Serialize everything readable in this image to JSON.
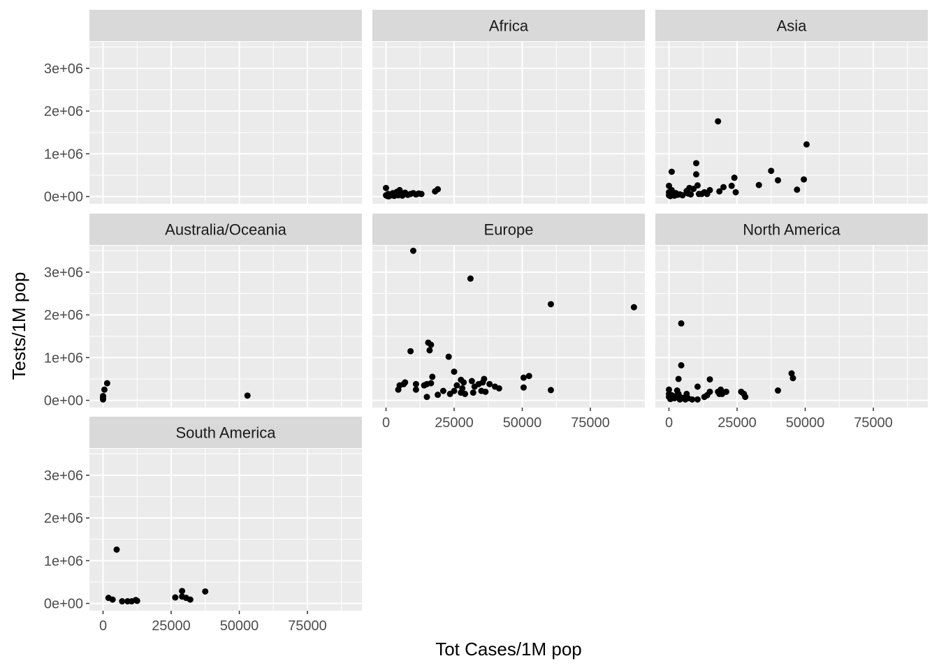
{
  "chart_data": {
    "type": "scatter",
    "facet_layout": "3 columns x 3 rows, shared axes (facet_wrap)",
    "xlabel": "Tot Cases/1M pop",
    "ylabel": "Tests/1M pop",
    "xlim": [
      -5000,
      95000
    ],
    "ylim": [
      -170000,
      3620000
    ],
    "x_ticks": [
      0,
      25000,
      50000,
      75000
    ],
    "x_tick_labels": [
      "0",
      "25000",
      "50000",
      "75000"
    ],
    "y_ticks": [
      0,
      1000000,
      2000000,
      3000000
    ],
    "y_tick_labels": [
      "0e+00",
      "1e+06",
      "2e+06",
      "3e+06"
    ],
    "grid": true,
    "panel_background": "#ebebeb",
    "strip_background": "#d9d9d9",
    "gridline_color": "#ffffff",
    "point_color": "#000000",
    "facets": [
      {
        "label": "",
        "points": []
      },
      {
        "label": "Africa",
        "points": [
          [
            0,
            200000
          ],
          [
            0,
            30000
          ],
          [
            500,
            10000
          ],
          [
            800,
            60000
          ],
          [
            1000,
            5000
          ],
          [
            1500,
            20000
          ],
          [
            2000,
            40000
          ],
          [
            2500,
            80000
          ],
          [
            3000,
            15000
          ],
          [
            3500,
            50000
          ],
          [
            4000,
            110000
          ],
          [
            4500,
            30000
          ],
          [
            5000,
            150000
          ],
          [
            5500,
            60000
          ],
          [
            6000,
            20000
          ],
          [
            7000,
            90000
          ],
          [
            8000,
            40000
          ],
          [
            9000,
            60000
          ],
          [
            10000,
            80000
          ],
          [
            11000,
            50000
          ],
          [
            12000,
            70000
          ],
          [
            13000,
            60000
          ],
          [
            18000,
            120000
          ],
          [
            19000,
            170000
          ]
        ]
      },
      {
        "label": "Asia",
        "points": [
          [
            0,
            250000
          ],
          [
            0,
            100000
          ],
          [
            0,
            30000
          ],
          [
            500,
            10000
          ],
          [
            1000,
            580000
          ],
          [
            1000,
            150000
          ],
          [
            1500,
            60000
          ],
          [
            2000,
            20000
          ],
          [
            2500,
            80000
          ],
          [
            3000,
            40000
          ],
          [
            4000,
            50000
          ],
          [
            5000,
            30000
          ],
          [
            6500,
            130000
          ],
          [
            7000,
            70000
          ],
          [
            7500,
            200000
          ],
          [
            8000,
            50000
          ],
          [
            9000,
            180000
          ],
          [
            10000,
            780000
          ],
          [
            10000,
            520000
          ],
          [
            10500,
            260000
          ],
          [
            11000,
            60000
          ],
          [
            12000,
            60000
          ],
          [
            13000,
            100000
          ],
          [
            14000,
            60000
          ],
          [
            15000,
            150000
          ],
          [
            18000,
            1760000
          ],
          [
            18500,
            120000
          ],
          [
            20000,
            220000
          ],
          [
            23000,
            250000
          ],
          [
            24000,
            440000
          ],
          [
            24500,
            100000
          ],
          [
            33000,
            270000
          ],
          [
            37500,
            600000
          ],
          [
            40000,
            380000
          ],
          [
            47000,
            160000
          ],
          [
            49500,
            400000
          ],
          [
            50500,
            1220000
          ]
        ]
      },
      {
        "label": "Australia/Oceania",
        "points": [
          [
            0,
            100000
          ],
          [
            0,
            60000
          ],
          [
            0,
            20000
          ],
          [
            500,
            250000
          ],
          [
            1500,
            400000
          ],
          [
            53000,
            110000
          ]
        ]
      },
      {
        "label": "Europe",
        "points": [
          [
            4500,
            250000
          ],
          [
            5000,
            350000
          ],
          [
            6500,
            380000
          ],
          [
            7000,
            420000
          ],
          [
            9000,
            1150000
          ],
          [
            10000,
            3500000
          ],
          [
            11000,
            380000
          ],
          [
            11000,
            250000
          ],
          [
            14000,
            350000
          ],
          [
            15000,
            80000
          ],
          [
            15000,
            380000
          ],
          [
            15500,
            1350000
          ],
          [
            16000,
            1170000
          ],
          [
            16500,
            1300000
          ],
          [
            16500,
            400000
          ],
          [
            17000,
            550000
          ],
          [
            19000,
            130000
          ],
          [
            21000,
            220000
          ],
          [
            23000,
            1020000
          ],
          [
            23500,
            150000
          ],
          [
            25000,
            670000
          ],
          [
            25000,
            220000
          ],
          [
            26000,
            350000
          ],
          [
            27500,
            180000
          ],
          [
            27500,
            480000
          ],
          [
            28000,
            280000
          ],
          [
            28500,
            420000
          ],
          [
            29000,
            150000
          ],
          [
            31000,
            2850000
          ],
          [
            31500,
            450000
          ],
          [
            32000,
            180000
          ],
          [
            32500,
            320000
          ],
          [
            34000,
            380000
          ],
          [
            35000,
            220000
          ],
          [
            35500,
            420000
          ],
          [
            36000,
            500000
          ],
          [
            36500,
            200000
          ],
          [
            38000,
            380000
          ],
          [
            40000,
            320000
          ],
          [
            41500,
            280000
          ],
          [
            50500,
            530000
          ],
          [
            50500,
            300000
          ],
          [
            52500,
            570000
          ],
          [
            60500,
            2250000
          ],
          [
            60500,
            240000
          ],
          [
            91000,
            2180000
          ]
        ]
      },
      {
        "label": "North America",
        "points": [
          [
            0,
            250000
          ],
          [
            0,
            150000
          ],
          [
            0,
            80000
          ],
          [
            500,
            30000
          ],
          [
            1000,
            120000
          ],
          [
            2000,
            50000
          ],
          [
            2500,
            100000
          ],
          [
            3000,
            230000
          ],
          [
            3500,
            150000
          ],
          [
            3500,
            500000
          ],
          [
            4000,
            80000
          ],
          [
            4000,
            20000
          ],
          [
            4500,
            820000
          ],
          [
            4500,
            1800000
          ],
          [
            5500,
            60000
          ],
          [
            6000,
            20000
          ],
          [
            6500,
            150000
          ],
          [
            7000,
            50000
          ],
          [
            8500,
            20000
          ],
          [
            10500,
            20000
          ],
          [
            10500,
            320000
          ],
          [
            13000,
            80000
          ],
          [
            14000,
            120000
          ],
          [
            15000,
            490000
          ],
          [
            15000,
            200000
          ],
          [
            18000,
            200000
          ],
          [
            18500,
            150000
          ],
          [
            19000,
            250000
          ],
          [
            19500,
            150000
          ],
          [
            21000,
            200000
          ],
          [
            26500,
            200000
          ],
          [
            27500,
            150000
          ],
          [
            28000,
            80000
          ],
          [
            40000,
            230000
          ],
          [
            45000,
            630000
          ],
          [
            45500,
            520000
          ]
        ]
      },
      {
        "label": "South America",
        "points": [
          [
            2000,
            130000
          ],
          [
            3500,
            90000
          ],
          [
            5000,
            1260000
          ],
          [
            7000,
            50000
          ],
          [
            9000,
            50000
          ],
          [
            10500,
            50000
          ],
          [
            12000,
            80000
          ],
          [
            12500,
            60000
          ],
          [
            26500,
            140000
          ],
          [
            29000,
            290000
          ],
          [
            29000,
            160000
          ],
          [
            30500,
            130000
          ],
          [
            32000,
            90000
          ],
          [
            37500,
            280000
          ]
        ]
      }
    ]
  }
}
